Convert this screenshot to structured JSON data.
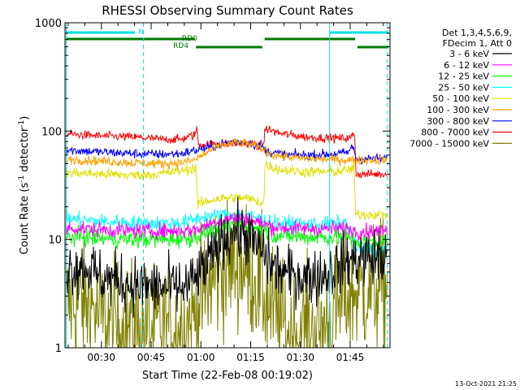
{
  "chart_data": {
    "type": "line",
    "title": "RHESSI Observing Summary Count Rates",
    "xlabel": "Start Time (22-Feb-08 00:19:02)",
    "ylabel_main": "Count Rate (s",
    "ylabel_sup1": "-1",
    "ylabel_mid": " detector",
    "ylabel_sup2": "-1",
    "ylabel_end": ")",
    "yscale": "log",
    "ylim": [
      1,
      1000
    ],
    "xlim": [
      19.03,
      117
    ],
    "xticks": [
      {
        "v": 30,
        "label": "00:30"
      },
      {
        "v": 45,
        "label": "00:45"
      },
      {
        "v": 60,
        "label": "01:00"
      },
      {
        "v": 75,
        "label": "01:15"
      },
      {
        "v": 90,
        "label": "01:30"
      },
      {
        "v": 105,
        "label": "01:45"
      }
    ],
    "yticks": [
      {
        "v": 1,
        "label": "1"
      },
      {
        "v": 10,
        "label": "10"
      },
      {
        "v": 100,
        "label": "100"
      },
      {
        "v": 1000,
        "label": "1000"
      }
    ],
    "legend_header": [
      "Det 1,3,4,5,6,9,",
      "FDecim 1, Att 0"
    ],
    "timestamp": "13-Oct-2021 21:25",
    "vlines": [
      {
        "x": 19.4,
        "color": "#00e0e0",
        "style": "solid"
      },
      {
        "x": 42.7,
        "color": "#00e0e0",
        "style": "dashed"
      },
      {
        "x": 98.8,
        "color": "#00e0e0",
        "style": "solid"
      },
      {
        "x": 116.2,
        "color": "#00e0e0",
        "style": "dashed"
      }
    ],
    "flags": [
      {
        "label": "N",
        "color": "#00e0e0",
        "y": 40,
        "segments": [
          [
            19.4,
            40.2
          ],
          [
            98.8,
            116.5
          ]
        ]
      },
      {
        "label": "RD0",
        "color": "#007800",
        "y": 48,
        "segments": [
          [
            19.4,
            58.2
          ],
          [
            79.2,
            106.5
          ]
        ]
      },
      {
        "label": "RD4",
        "color": "#007800",
        "y": 58,
        "segments": [
          [
            58.5,
            78.5
          ],
          [
            107.2,
            116.5
          ]
        ]
      }
    ],
    "series": [
      {
        "name": "3 - 6 keV",
        "color": "#000000",
        "noise": 0.13,
        "points": [
          [
            19.5,
            5.6
          ],
          [
            27,
            5.5
          ],
          [
            29,
            4.5
          ],
          [
            35,
            4.2
          ],
          [
            40,
            3.8
          ],
          [
            48,
            3.6
          ],
          [
            55,
            3.6
          ],
          [
            58,
            4.2
          ],
          [
            62,
            6
          ],
          [
            66,
            9.5
          ],
          [
            70,
            12
          ],
          [
            74,
            11
          ],
          [
            78,
            8
          ],
          [
            82,
            5.5
          ],
          [
            86,
            4.8
          ],
          [
            92,
            4.5
          ],
          [
            98,
            4.8
          ],
          [
            104,
            6.4
          ],
          [
            110,
            6.8
          ],
          [
            116.2,
            6.8
          ]
        ]
      },
      {
        "name": "6 - 12 keV",
        "color": "#ff00ff",
        "noise": 0.035,
        "points": [
          [
            19.5,
            12.8
          ],
          [
            30,
            12.3
          ],
          [
            40,
            12
          ],
          [
            50,
            12
          ],
          [
            56,
            12
          ],
          [
            59,
            12.5
          ],
          [
            64,
            14.5
          ],
          [
            70,
            15.8
          ],
          [
            74,
            15.5
          ],
          [
            78,
            14.2
          ],
          [
            82,
            13
          ],
          [
            90,
            12.5
          ],
          [
            98,
            12.6
          ],
          [
            104,
            12.6
          ],
          [
            107,
            11.8
          ],
          [
            116.2,
            12
          ]
        ]
      },
      {
        "name": "12 - 25 keV",
        "color": "#00ff00",
        "noise": 0.04,
        "points": [
          [
            19.5,
            10.6
          ],
          [
            30,
            10.2
          ],
          [
            40,
            10
          ],
          [
            50,
            10
          ],
          [
            56,
            10.2
          ],
          [
            60,
            11
          ],
          [
            65,
            13
          ],
          [
            70,
            14
          ],
          [
            74,
            13.8
          ],
          [
            78,
            12.6
          ],
          [
            82,
            11
          ],
          [
            90,
            10.5
          ],
          [
            98,
            10.5
          ],
          [
            104,
            10.5
          ],
          [
            107,
            9.6
          ],
          [
            116.2,
            9.6
          ]
        ]
      },
      {
        "name": "25 - 50 keV",
        "color": "#00ffff",
        "noise": 0.035,
        "points": [
          [
            19.5,
            15.5
          ],
          [
            30,
            14.6
          ],
          [
            40,
            14.2
          ],
          [
            50,
            14
          ],
          [
            56,
            14.5
          ],
          [
            60,
            16
          ],
          [
            65,
            16.5
          ],
          [
            70,
            17
          ],
          [
            74,
            16.6
          ],
          [
            78,
            15.5
          ],
          [
            82,
            14.2
          ],
          [
            90,
            13.8
          ],
          [
            98,
            13.8
          ],
          [
            104,
            14.2
          ],
          [
            107,
            8.2
          ],
          [
            116.2,
            8.2
          ]
        ]
      },
      {
        "name": "50 - 100 keV",
        "color": "#e0e000",
        "noise": 0.025,
        "points": [
          [
            19.5,
            41.5
          ],
          [
            30,
            40
          ],
          [
            40,
            39
          ],
          [
            48,
            40.5
          ],
          [
            54,
            43
          ],
          [
            57,
            45
          ],
          [
            58.5,
            46
          ],
          [
            59,
            21
          ],
          [
            64,
            23.5
          ],
          [
            70,
            24.5
          ],
          [
            74,
            24
          ],
          [
            78,
            22
          ],
          [
            79,
            21
          ],
          [
            79.3,
            49
          ],
          [
            84,
            44
          ],
          [
            92,
            42
          ],
          [
            100,
            42
          ],
          [
            105,
            44
          ],
          [
            106.2,
            46
          ],
          [
            106.6,
            17
          ],
          [
            116.2,
            17
          ]
        ]
      },
      {
        "name": "100 - 300 keV",
        "color": "#ffa000",
        "noise": 0.022,
        "points": [
          [
            19.5,
            55
          ],
          [
            30,
            53
          ],
          [
            40,
            51
          ],
          [
            48,
            50
          ],
          [
            54,
            51
          ],
          [
            58,
            54
          ],
          [
            62,
            64
          ],
          [
            66,
            74
          ],
          [
            70,
            78
          ],
          [
            74,
            77
          ],
          [
            78,
            70
          ],
          [
            82,
            60
          ],
          [
            90,
            56
          ],
          [
            98,
            55
          ],
          [
            104,
            54
          ],
          [
            116.2,
            54
          ]
        ]
      },
      {
        "name": "300 - 800 keV",
        "color": "#0000ff",
        "noise": 0.022,
        "points": [
          [
            19.5,
            67
          ],
          [
            30,
            64
          ],
          [
            40,
            62
          ],
          [
            48,
            61
          ],
          [
            54,
            62
          ],
          [
            58,
            66
          ],
          [
            62,
            70
          ],
          [
            66,
            76
          ],
          [
            70,
            80
          ],
          [
            74,
            79
          ],
          [
            78,
            73
          ],
          [
            80,
            65
          ],
          [
            86,
            60
          ],
          [
            92,
            60
          ],
          [
            98,
            61
          ],
          [
            104,
            63
          ],
          [
            106,
            72
          ],
          [
            106.8,
            55
          ],
          [
            116.2,
            56
          ]
        ]
      },
      {
        "name": "800 - 7000 keV",
        "color": "#ff0000",
        "noise": 0.02,
        "points": [
          [
            19.5,
            94
          ],
          [
            30,
            90
          ],
          [
            40,
            88
          ],
          [
            48,
            84
          ],
          [
            54,
            84
          ],
          [
            58,
            92
          ],
          [
            58.8,
            104
          ],
          [
            59.3,
            75
          ],
          [
            64,
            76
          ],
          [
            70,
            77
          ],
          [
            74,
            77
          ],
          [
            78,
            74
          ],
          [
            79,
            78
          ],
          [
            79.4,
            106
          ],
          [
            84,
            95
          ],
          [
            92,
            88
          ],
          [
            100,
            86
          ],
          [
            105,
            86
          ],
          [
            106.3,
            96
          ],
          [
            106.8,
            40
          ],
          [
            116.2,
            40
          ]
        ]
      },
      {
        "name": "7000 - 15000 keV",
        "color": "#808000",
        "noise": 0.3,
        "points": [
          [
            19.5,
            2.6
          ],
          [
            27,
            2.5
          ],
          [
            29,
            2
          ],
          [
            35,
            1.55
          ],
          [
            45,
            1.45
          ],
          [
            55,
            1.55
          ],
          [
            58,
            2
          ],
          [
            62,
            3.5
          ],
          [
            66,
            5
          ],
          [
            70,
            6
          ],
          [
            74,
            5.4
          ],
          [
            78,
            3.7
          ],
          [
            82,
            2
          ],
          [
            86,
            1.45
          ],
          [
            95,
            1.4
          ],
          [
            100,
            2
          ],
          [
            104,
            3
          ],
          [
            110,
            3.5
          ],
          [
            116.2,
            3.6
          ]
        ]
      }
    ]
  }
}
